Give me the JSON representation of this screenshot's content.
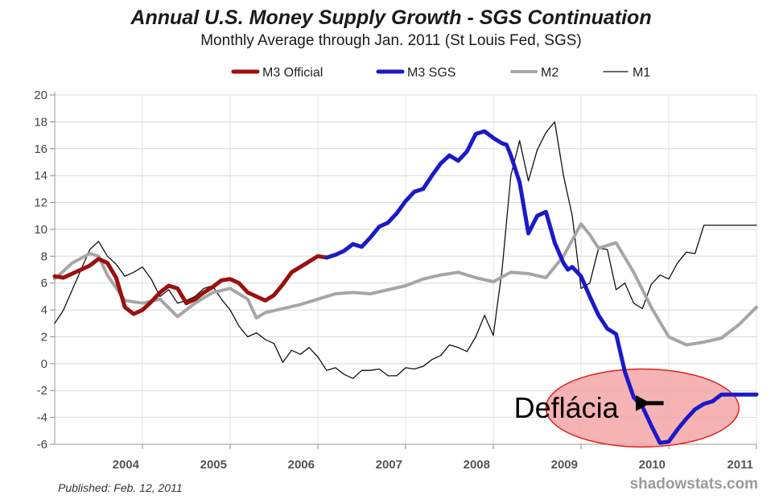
{
  "chart_data": {
    "type": "line",
    "title": "Annual U.S. Money Supply Growth - SGS Continuation",
    "subtitle": "Monthly Average through Jan. 2011  (St Louis Fed, SGS)",
    "xlabel": "",
    "ylabel": "",
    "xlim": [
      2003.0,
      2011.0
    ],
    "ylim": [
      -6,
      20
    ],
    "yticks": [
      -6,
      -4,
      -2,
      0,
      2,
      4,
      6,
      8,
      10,
      12,
      14,
      16,
      18,
      20
    ],
    "ytick_labels": [
      "-6",
      "-4",
      "-2",
      "0",
      "2",
      "4",
      "6",
      "8",
      "10",
      "12",
      "14",
      "16",
      "18",
      "20"
    ],
    "xticks": [
      2004,
      2005,
      2006,
      2007,
      2008,
      2009,
      2010,
      2011
    ],
    "xtick_labels": [
      "2004",
      "2005",
      "2006",
      "2007",
      "2008",
      "2009",
      "2010",
      "2011"
    ],
    "grid": true,
    "legend": "top",
    "series": [
      {
        "name": "M3 Official",
        "color": "#9b1010",
        "x": [
          2003.0,
          2003.1,
          2003.2,
          2003.3,
          2003.4,
          2003.5,
          2003.6,
          2003.7,
          2003.8,
          2003.9,
          2004.0,
          2004.1,
          2004.2,
          2004.3,
          2004.4,
          2004.5,
          2004.6,
          2004.7,
          2004.8,
          2004.9,
          2005.0,
          2005.1,
          2005.2,
          2005.3,
          2005.4,
          2005.5,
          2005.6,
          2005.7,
          2005.8,
          2005.9,
          2006.0,
          2006.1
        ],
        "y": [
          6.5,
          6.4,
          6.7,
          7.0,
          7.3,
          7.8,
          7.5,
          6.4,
          4.2,
          3.7,
          4.0,
          4.6,
          5.3,
          5.8,
          5.6,
          4.5,
          4.8,
          5.3,
          5.7,
          6.2,
          6.3,
          6.0,
          5.3,
          5.0,
          4.7,
          5.1,
          5.9,
          6.8,
          7.2,
          7.6,
          8.0,
          7.9
        ]
      },
      {
        "name": "M3 SGS",
        "color": "#1a1ac8",
        "x": [
          2006.1,
          2006.2,
          2006.3,
          2006.4,
          2006.5,
          2006.6,
          2006.7,
          2006.8,
          2006.9,
          2007.0,
          2007.1,
          2007.2,
          2007.3,
          2007.4,
          2007.5,
          2007.6,
          2007.7,
          2007.8,
          2007.9,
          2008.0,
          2008.1,
          2008.15,
          2008.2,
          2008.3,
          2008.4,
          2008.5,
          2008.6,
          2008.7,
          2008.8,
          2008.85,
          2008.9,
          2009.0,
          2009.1,
          2009.2,
          2009.3,
          2009.4,
          2009.5,
          2009.6,
          2009.7,
          2009.8,
          2009.9,
          2010.0,
          2010.1,
          2010.2,
          2010.3,
          2010.4,
          2010.5,
          2010.6,
          2010.7,
          2010.8,
          2010.9,
          2011.0
        ],
        "y": [
          7.9,
          8.1,
          8.4,
          8.9,
          8.7,
          9.4,
          10.2,
          10.5,
          11.2,
          12.1,
          12.8,
          13.0,
          14.0,
          14.9,
          15.5,
          15.1,
          15.8,
          17.1,
          17.3,
          16.8,
          16.4,
          16.3,
          15.5,
          13.5,
          9.7,
          11.0,
          11.3,
          9.0,
          7.5,
          7.0,
          7.2,
          6.5,
          5.0,
          3.6,
          2.6,
          2.2,
          -0.6,
          -2.5,
          -3.2,
          -4.6,
          -5.9,
          -5.8,
          -4.9,
          -4.1,
          -3.4,
          -3.0,
          -2.8,
          -2.3,
          -2.3,
          -2.3,
          -2.3,
          -2.3
        ],
        "y_note": "aligned to x"
      },
      {
        "name": "M2",
        "color": "#a6a6a6",
        "x": [
          2003.0,
          2003.2,
          2003.4,
          2003.5,
          2003.6,
          2003.8,
          2004.0,
          2004.2,
          2004.4,
          2004.6,
          2004.8,
          2005.0,
          2005.2,
          2005.3,
          2005.4,
          2005.6,
          2005.8,
          2006.0,
          2006.2,
          2006.4,
          2006.6,
          2006.8,
          2007.0,
          2007.2,
          2007.4,
          2007.6,
          2007.8,
          2008.0,
          2008.2,
          2008.4,
          2008.6,
          2008.8,
          2009.0,
          2009.1,
          2009.2,
          2009.4,
          2009.6,
          2009.8,
          2010.0,
          2010.2,
          2010.4,
          2010.6,
          2010.8,
          2011.0
        ],
        "y": [
          6.3,
          7.5,
          8.2,
          8.0,
          6.6,
          4.7,
          4.5,
          4.8,
          3.5,
          4.5,
          5.3,
          5.6,
          4.8,
          3.4,
          3.8,
          4.1,
          4.4,
          4.8,
          5.2,
          5.3,
          5.2,
          5.5,
          5.8,
          6.3,
          6.6,
          6.8,
          6.4,
          6.1,
          6.8,
          6.7,
          6.4,
          8.0,
          10.4,
          9.6,
          8.6,
          9.0,
          6.8,
          4.2,
          2.0,
          1.4,
          1.6,
          1.9,
          2.9,
          4.2
        ]
      },
      {
        "name": "M1",
        "color": "#111111",
        "x": [
          2003.0,
          2003.1,
          2003.2,
          2003.3,
          2003.4,
          2003.5,
          2003.6,
          2003.7,
          2003.8,
          2003.9,
          2004.0,
          2004.1,
          2004.2,
          2004.3,
          2004.4,
          2004.5,
          2004.6,
          2004.7,
          2004.8,
          2004.9,
          2005.0,
          2005.1,
          2005.2,
          2005.3,
          2005.4,
          2005.5,
          2005.6,
          2005.7,
          2005.8,
          2005.9,
          2006.0,
          2006.1,
          2006.2,
          2006.3,
          2006.4,
          2006.5,
          2006.6,
          2006.7,
          2006.8,
          2006.9,
          2007.0,
          2007.1,
          2007.2,
          2007.3,
          2007.4,
          2007.5,
          2007.6,
          2007.7,
          2007.8,
          2007.9,
          2008.0,
          2008.1,
          2008.2,
          2008.3,
          2008.4,
          2008.5,
          2008.6,
          2008.7,
          2008.8,
          2008.9,
          2009.0,
          2009.1,
          2009.2,
          2009.3,
          2009.4,
          2009.5,
          2009.6,
          2009.7,
          2009.8,
          2009.9,
          2010.0,
          2010.1,
          2010.2,
          2010.3,
          2010.4,
          2010.5,
          2010.6,
          2010.7,
          2010.8,
          2010.9,
          2011.0
        ],
        "y": [
          3.0,
          4.0,
          5.5,
          7.0,
          8.5,
          9.1,
          8.0,
          7.4,
          6.5,
          6.8,
          7.2,
          6.3,
          5.0,
          5.5,
          4.5,
          4.7,
          5.0,
          5.6,
          5.8,
          4.8,
          4.0,
          2.8,
          2.0,
          2.3,
          1.8,
          1.5,
          0.1,
          1.0,
          0.7,
          1.2,
          0.5,
          -0.5,
          -0.3,
          -0.8,
          -1.1,
          -0.5,
          -0.5,
          -0.4,
          -0.9,
          -0.9,
          -0.3,
          -0.4,
          -0.2,
          0.3,
          0.6,
          1.4,
          1.2,
          0.9,
          2.0,
          3.6,
          2.1,
          7.0,
          14.0,
          16.6,
          13.6,
          15.9,
          17.2,
          18.0,
          14.0,
          11.0,
          5.6,
          6.0,
          8.6,
          8.5,
          5.5,
          6.0,
          4.5,
          4.1,
          5.9,
          6.6,
          6.3,
          7.5,
          8.3,
          8.2,
          10.3,
          10.3,
          10.3,
          10.3,
          10.3,
          10.3,
          10.3
        ],
        "y_note": "M1 series"
      }
    ],
    "annotations": [
      {
        "text": "Deflácia",
        "x": 2008.4,
        "y": -3.3,
        "arrow_to": [
          2009.9,
          -2.7
        ],
        "highlight_ellipse": {
          "center": [
            2009.7,
            -3.3
          ],
          "rx_years": 1.1,
          "ry_units": 2.9,
          "fill": "#f4a6a6",
          "stroke": "#e02020"
        }
      }
    ],
    "footer_left": "Published: Feb. 12, 2011",
    "footer_right": "shadowstats.com"
  }
}
